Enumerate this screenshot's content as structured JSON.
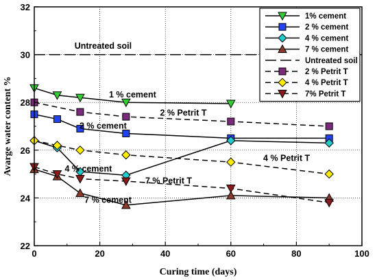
{
  "chart_data": {
    "type": "line",
    "xlabel": "Curing time (days)",
    "ylabel": "Avarge water content %",
    "xlim": [
      0,
      100
    ],
    "ylim": [
      22,
      32
    ],
    "xticks": [
      "0",
      "20",
      "40",
      "60",
      "80",
      "100"
    ],
    "yticks": [
      "22",
      "24",
      "26",
      "28",
      "30",
      "32"
    ],
    "grid": true,
    "legend_position": "top-right",
    "series": [
      {
        "name": "1% cement",
        "x": [
          0,
          7,
          14,
          28,
          60
        ],
        "y": [
          28.6,
          28.3,
          28.2,
          28.0,
          27.95
        ],
        "color": "#33cc33",
        "marker": "triangle-down",
        "dash": "solid"
      },
      {
        "name": "2 % cement",
        "x": [
          0,
          7,
          14,
          28,
          60,
          90
        ],
        "y": [
          27.5,
          27.3,
          26.9,
          26.7,
          26.5,
          26.5
        ],
        "color": "#2244ee",
        "marker": "square",
        "dash": "solid"
      },
      {
        "name": "4 % cement",
        "x": [
          0,
          7,
          14,
          28,
          60,
          90
        ],
        "y": [
          26.4,
          26.1,
          25.1,
          24.95,
          26.4,
          26.3
        ],
        "color": "#22cccc",
        "marker": "diamond",
        "dash": "solid"
      },
      {
        "name": "7 % cement",
        "x": [
          0,
          7,
          14,
          28,
          60,
          90
        ],
        "y": [
          25.2,
          24.9,
          24.2,
          23.7,
          24.1,
          24.0
        ],
        "color": "#8b3a2a",
        "marker": "triangle-up",
        "dash": "solid"
      },
      {
        "name": "Untreated soil",
        "x": [
          0,
          100
        ],
        "y": [
          30.0,
          30.0
        ],
        "color": "#000000",
        "marker": "none",
        "dash": "longdash"
      },
      {
        "name": "2 % Petrit T",
        "x": [
          0,
          14,
          28,
          60,
          90
        ],
        "y": [
          28.0,
          27.6,
          27.4,
          27.2,
          27.0
        ],
        "color": "#7a2a7a",
        "marker": "square",
        "dash": "dash"
      },
      {
        "name": "4 % Petrit T",
        "x": [
          0,
          7,
          14,
          28,
          60,
          90
        ],
        "y": [
          26.4,
          26.2,
          26.0,
          25.8,
          25.5,
          25.0
        ],
        "color": "#ffee00",
        "marker": "diamond",
        "dash": "dash"
      },
      {
        "name": "7% Petrit T",
        "x": [
          0,
          7,
          14,
          28,
          60,
          90
        ],
        "y": [
          25.3,
          25.0,
          24.8,
          24.7,
          24.4,
          23.8
        ],
        "color": "#8b1a1a",
        "marker": "triangle-down",
        "dash": "dash"
      }
    ],
    "annotations": [
      {
        "text": "Untreated soil",
        "x": 21,
        "y": 30.25
      },
      {
        "text": "1 % cement",
        "x": 30,
        "y": 28.2
      },
      {
        "text": "2 % Petrit T",
        "x": 45.5,
        "y": 27.45
      },
      {
        "text": "2 % cement",
        "x": 21,
        "y": 26.9
      },
      {
        "text": "4 % Petrit T",
        "x": 77,
        "y": 25.55
      },
      {
        "text": "4 % cement",
        "x": 16.5,
        "y": 25.1
      },
      {
        "text": "7 % Petrit T",
        "x": 41,
        "y": 24.6
      },
      {
        "text": "7 % cement",
        "x": 22.5,
        "y": 23.8
      }
    ]
  }
}
